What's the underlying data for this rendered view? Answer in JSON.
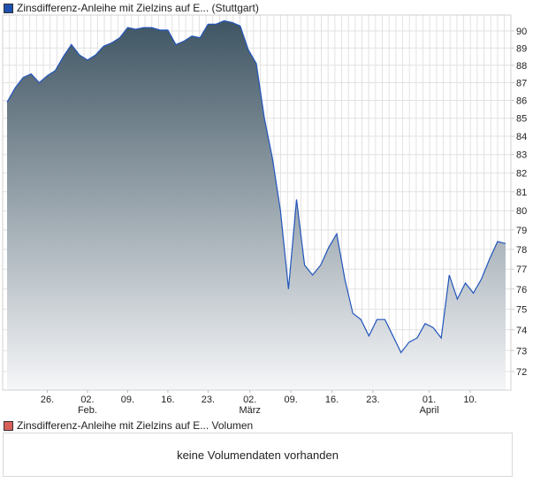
{
  "price_legend": {
    "label": "Zinsdifferenz-Anleihe mit Zielzins auf E... (Stuttgart)",
    "color": "#1f4fb0"
  },
  "volume_legend": {
    "label": "Zinsdifferenz-Anleihe mit Zielzins auf E... Volumen",
    "color": "#d9605a"
  },
  "volume_message": "keine Volumendaten vorhanden",
  "chart_data": {
    "type": "area",
    "title": "Zinsdifferenz-Anleihe mit Zielzins auf E... (Stuttgart)",
    "y_scale": "log",
    "ylim": [
      71.5,
      90.9
    ],
    "yticks": [
      "90",
      "89",
      "88",
      "87",
      "86",
      "85",
      "84",
      "83",
      "82",
      "81",
      "80",
      "79",
      "78",
      "77",
      "76",
      "75",
      "74",
      "73",
      "72"
    ],
    "xticks": [
      {
        "label": "26.",
        "sub": "",
        "index": 5
      },
      {
        "label": "02.",
        "sub": "Feb.",
        "index": 10
      },
      {
        "label": "09.",
        "sub": "",
        "index": 15
      },
      {
        "label": "16.",
        "sub": "",
        "index": 20
      },
      {
        "label": "23.",
        "sub": "",
        "index": 25
      },
      {
        "label": "02.",
        "sub": "März",
        "index": 30.2
      },
      {
        "label": "09.",
        "sub": "",
        "index": 35.3
      },
      {
        "label": "16.",
        "sub": "",
        "index": 40.4
      },
      {
        "label": "23.",
        "sub": "",
        "index": 45.5
      },
      {
        "label": "01.",
        "sub": "April",
        "index": 52.5
      },
      {
        "label": "10.",
        "sub": "",
        "index": 57.6
      }
    ],
    "grid": true,
    "line_color": "#2255bb",
    "fill_top": "#3f5563",
    "fill_bottom": "#f5f6f8",
    "values": [
      85.9,
      86.7,
      87.3,
      87.5,
      87.0,
      87.4,
      87.7,
      88.5,
      89.2,
      88.6,
      88.3,
      88.6,
      89.1,
      89.3,
      89.6,
      90.2,
      90.1,
      90.2,
      90.2,
      90.05,
      90.05,
      89.2,
      89.4,
      89.7,
      89.6,
      90.4,
      90.4,
      90.6,
      90.5,
      90.3,
      88.9,
      88.1,
      85.0,
      82.8,
      80.0,
      76.0,
      80.6,
      77.2,
      76.7,
      77.2,
      78.1,
      78.8,
      76.5,
      74.8,
      74.5,
      73.7,
      74.5,
      74.5,
      73.7,
      72.9,
      73.4,
      73.6,
      74.3,
      74.1,
      73.6,
      76.7,
      75.5,
      76.3,
      75.8,
      76.5,
      77.5,
      78.4,
      78.3
    ]
  }
}
